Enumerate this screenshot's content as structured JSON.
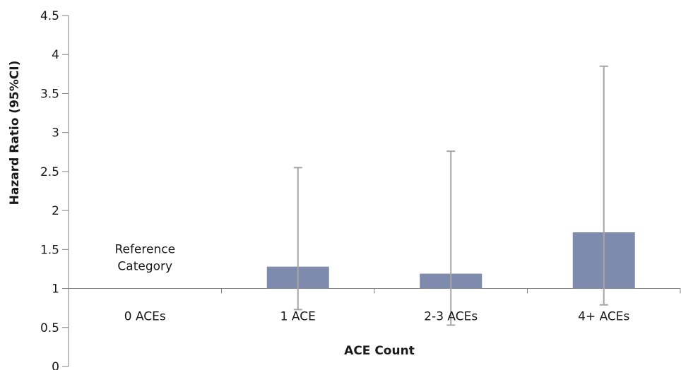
{
  "chart_data": {
    "type": "bar",
    "title": "",
    "xlabel": "ACE Count",
    "ylabel": "Hazard Ratio (95%CI)",
    "ylim": [
      0,
      4.5
    ],
    "baseline": 1,
    "yticks": [
      "0",
      "0.5",
      "1",
      "1.5",
      "2",
      "2.5",
      "3",
      "3.5",
      "4",
      "4.5"
    ],
    "categories": [
      "0 ACEs",
      "1 ACE",
      "2-3 ACEs",
      "4+ ACEs"
    ],
    "values": [
      null,
      1.28,
      1.19,
      1.72
    ],
    "ci_lower": [
      null,
      0.73,
      0.53,
      0.79
    ],
    "ci_upper": [
      null,
      2.55,
      2.76,
      3.85
    ],
    "annotations": [
      {
        "category": "0 ACEs",
        "lines": [
          "Reference",
          "Category"
        ]
      }
    ],
    "bar_color": "#7f8bad",
    "errorbar_color": "#a6a6a6",
    "axis_color": "#7f7f7f",
    "grid": false,
    "legend": "none"
  }
}
